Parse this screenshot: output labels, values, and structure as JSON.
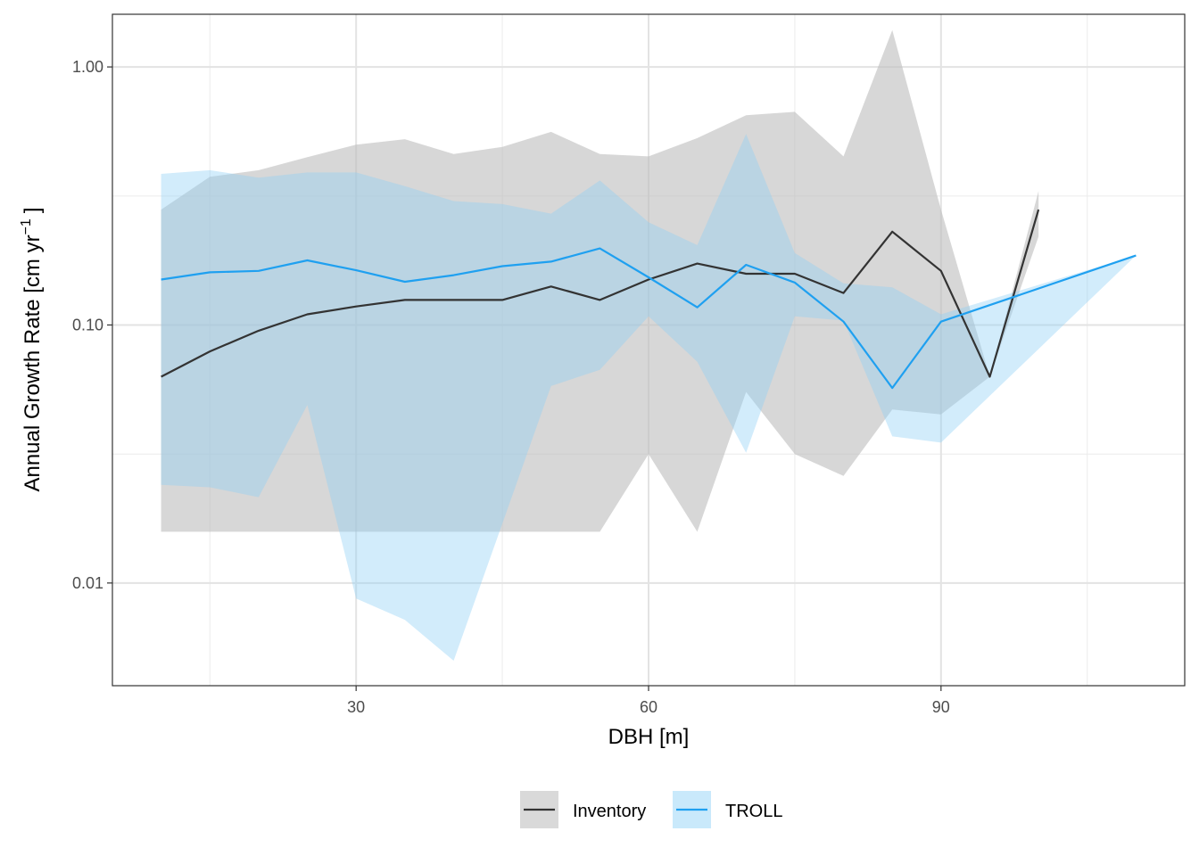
{
  "chart_data": {
    "type": "line",
    "xlabel": "DBH [m]",
    "ylabel": "Annual Growth Rate [cm yr",
    "ylabel_exponent": "−1",
    "ylabel_close": "]",
    "y_scale": "log10",
    "xlim": [
      5,
      115
    ],
    "ylim": [
      0.004,
      1.6
    ],
    "x_ticks": [
      30,
      60,
      90
    ],
    "x_tick_labels": [
      "30",
      "60",
      "90"
    ],
    "y_ticks": [
      0.01,
      0.1,
      1
    ],
    "y_tick_labels": [
      "0.01",
      "0.10",
      "1.00"
    ],
    "x_minor_ticks": [
      15,
      45,
      75,
      105
    ],
    "y_minor_ticks": [
      0.0316,
      0.316
    ],
    "grid": true,
    "legend_position": "bottom",
    "series": [
      {
        "name": "Inventory",
        "line_color": "#333333",
        "fill_color": "#bdbdbd",
        "x": [
          10,
          15,
          20,
          25,
          30,
          35,
          40,
          45,
          50,
          55,
          60,
          65,
          70,
          75,
          80,
          85,
          90,
          95,
          100
        ],
        "y": [
          0.063,
          0.079,
          0.095,
          0.11,
          0.118,
          0.125,
          0.125,
          0.125,
          0.141,
          0.125,
          0.15,
          0.173,
          0.158,
          0.158,
          0.133,
          0.23,
          0.162,
          0.063,
          0.28
        ],
        "lower": [
          0.0158,
          0.0158,
          0.0158,
          0.0158,
          0.0158,
          0.0158,
          0.0158,
          0.0158,
          0.0158,
          0.0158,
          0.0316,
          0.0158,
          0.055,
          0.0316,
          0.026,
          0.047,
          0.045,
          0.063,
          0.22
        ],
        "upper": [
          0.28,
          0.375,
          0.398,
          0.447,
          0.5,
          0.525,
          0.46,
          0.49,
          0.56,
          0.46,
          0.45,
          0.53,
          0.65,
          0.67,
          0.45,
          1.39,
          0.28,
          0.063,
          0.33
        ]
      },
      {
        "name": "TROLL",
        "line_color": "#1fa0f0",
        "fill_color": "#8fd0f5",
        "x": [
          10,
          15,
          20,
          25,
          30,
          35,
          40,
          45,
          50,
          55,
          60,
          65,
          70,
          75,
          80,
          85,
          90,
          110
        ],
        "y": [
          0.15,
          0.16,
          0.162,
          0.178,
          0.163,
          0.147,
          0.156,
          0.169,
          0.176,
          0.198,
          0.153,
          0.117,
          0.171,
          0.146,
          0.103,
          0.057,
          0.103,
          0.186
        ],
        "lower": [
          0.024,
          0.0235,
          0.0215,
          0.049,
          0.0087,
          0.0072,
          0.005,
          0.017,
          0.058,
          0.067,
          0.108,
          0.072,
          0.032,
          0.108,
          0.104,
          0.037,
          0.035,
          0.186
        ],
        "upper": [
          0.385,
          0.398,
          0.372,
          0.39,
          0.39,
          0.345,
          0.302,
          0.294,
          0.27,
          0.363,
          0.25,
          0.204,
          0.55,
          0.19,
          0.145,
          0.14,
          0.11,
          0.186
        ]
      }
    ]
  }
}
